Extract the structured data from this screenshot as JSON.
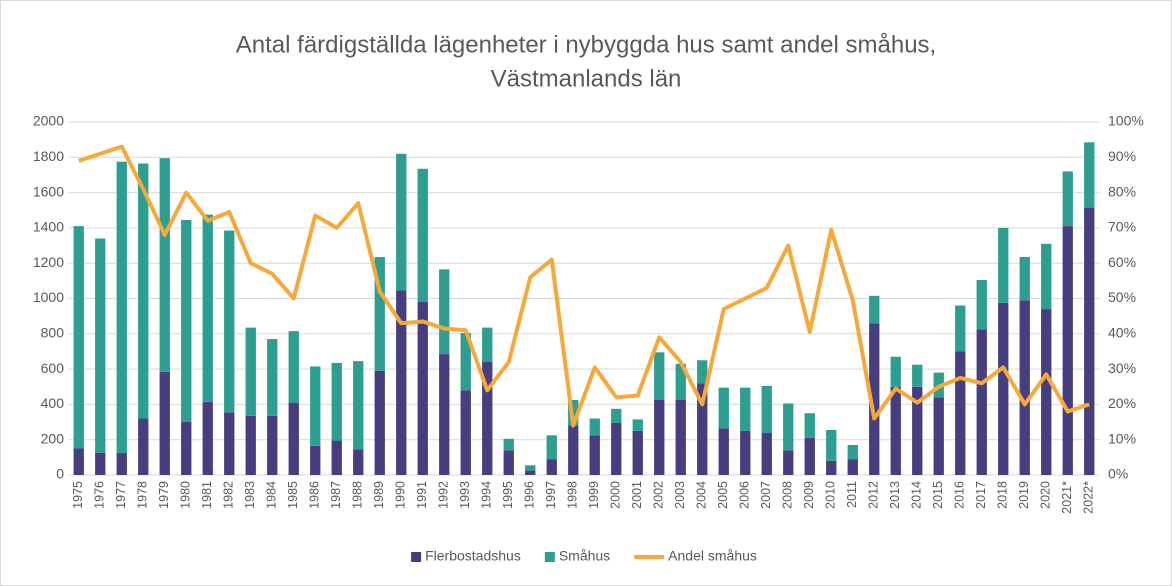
{
  "chart_data": {
    "type": "bar",
    "stacked": true,
    "title": [
      "Antal färdigställda lägenheter i nybyggda hus samt andel småhus,",
      "Västmanlands län"
    ],
    "categories": [
      "1975",
      "1976",
      "1977",
      "1978",
      "1979",
      "1980",
      "1981",
      "1982",
      "1983",
      "1984",
      "1985",
      "1986",
      "1987",
      "1988",
      "1989",
      "1990",
      "1991",
      "1992",
      "1993",
      "1994",
      "1995",
      "1996",
      "1997",
      "1998",
      "1999",
      "2000",
      "2001",
      "2002",
      "2003",
      "2004",
      "2005",
      "2006",
      "2007",
      "2008",
      "2009",
      "2010",
      "2011",
      "2012",
      "2013",
      "2014",
      "2015",
      "2016",
      "2017",
      "2018",
      "2019",
      "2020",
      "2021*",
      "2022*"
    ],
    "series": [
      {
        "name": "Flerbostadshus",
        "color": "#463e7e",
        "values": [
          150,
          125,
          125,
          320,
          585,
          300,
          415,
          355,
          335,
          335,
          410,
          165,
          195,
          145,
          590,
          1045,
          980,
          685,
          480,
          640,
          140,
          25,
          90,
          280,
          225,
          295,
          250,
          425,
          425,
          520,
          265,
          250,
          240,
          140,
          210,
          80,
          90,
          860,
          500,
          500,
          440,
          700,
          825,
          975,
          990,
          940,
          1410,
          1515
        ]
      },
      {
        "name": "Småhus",
        "color": "#2e9e91",
        "values": [
          1260,
          1215,
          1650,
          1445,
          1210,
          1145,
          1060,
          1030,
          500,
          435,
          405,
          450,
          440,
          500,
          645,
          775,
          755,
          480,
          325,
          195,
          65,
          30,
          135,
          145,
          95,
          80,
          65,
          270,
          205,
          130,
          230,
          245,
          265,
          265,
          140,
          175,
          80,
          155,
          170,
          125,
          140,
          260,
          280,
          425,
          245,
          370,
          310,
          370
        ]
      },
      {
        "name": "Andel småhus",
        "type": "line",
        "axis": "y2",
        "color": "#f5a93b",
        "values": [
          89,
          91,
          93,
          81,
          68,
          80,
          72,
          74.5,
          60,
          57,
          50,
          73.5,
          70,
          77,
          52,
          43,
          43.5,
          41.5,
          41,
          24,
          32,
          56,
          61,
          14,
          30.5,
          22,
          22.5,
          39,
          32,
          20,
          47,
          50,
          53,
          65,
          40.5,
          69.5,
          49.5,
          16,
          24.5,
          20.5,
          25,
          27.5,
          26,
          30.5,
          20,
          28.5,
          18,
          20
        ]
      }
    ],
    "ylim": [
      0,
      2000
    ],
    "yticks": [
      0,
      200,
      400,
      600,
      800,
      1000,
      1200,
      1400,
      1600,
      1800,
      2000
    ],
    "y2lim": [
      0,
      100
    ],
    "y2ticks": [
      {
        "value": 0,
        "label": "0%"
      },
      {
        "value": 10,
        "label": "10%"
      },
      {
        "value": 20,
        "label": "20%"
      },
      {
        "value": 30,
        "label": "30%"
      },
      {
        "value": 40,
        "label": "40%"
      },
      {
        "value": 50,
        "label": "50%"
      },
      {
        "value": 60,
        "label": "60%"
      },
      {
        "value": 70,
        "label": "70%"
      },
      {
        "value": 80,
        "label": "80%"
      },
      {
        "value": 90,
        "label": "90%"
      },
      {
        "value": 100,
        "label": "100%"
      }
    ],
    "grid": true,
    "legend": "bottom"
  }
}
